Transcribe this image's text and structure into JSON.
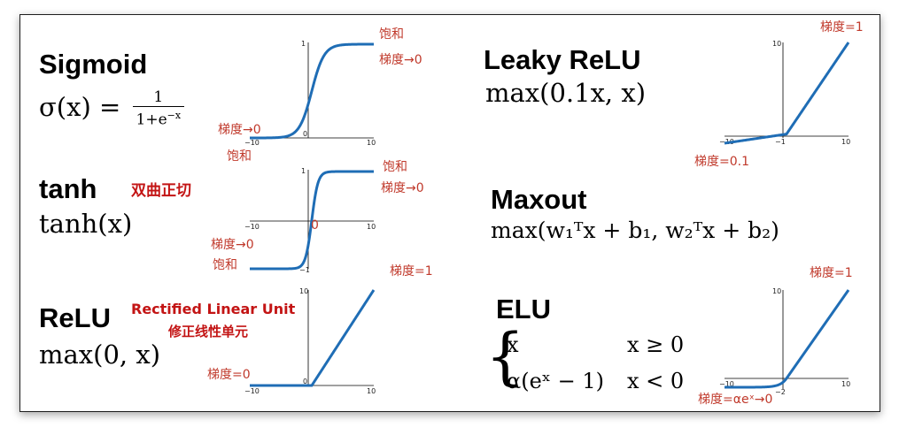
{
  "panels": {
    "sigmoid": {
      "title": "Sigmoid",
      "lhs": "σ(x) =",
      "num": "1",
      "den_base": "1+e",
      "den_exp": "−x",
      "note_top": "饱和",
      "note_top2": "梯度→0",
      "note_bottom": "梯度→0",
      "note_bottom2": "饱和",
      "ticks": {
        "ymax": "1",
        "ymid": "0",
        "xmin": "−10",
        "xmax": "10"
      }
    },
    "tanh": {
      "title": "tanh",
      "formula": "tanh(x)",
      "cn_label": "双曲正切",
      "note_top": "饱和",
      "note_top2": "梯度→0",
      "note_bottom": "梯度→0",
      "note_bottom2": "饱和",
      "note_center": "0",
      "ticks": {
        "ymax": "1",
        "ymin": "−1",
        "xmin": "−10",
        "xmax": "10"
      }
    },
    "relu": {
      "title": "ReLU",
      "formula": "max(0, x)",
      "en_label": "Rectified Linear Unit",
      "cn_label": "修正线性单元",
      "note_right": "梯度=1",
      "note_left": "梯度=0",
      "ticks": {
        "ymax": "10",
        "ymid": "0",
        "xmin": "−10",
        "xmax": "10"
      }
    },
    "leaky_relu": {
      "title": "Leaky ReLU",
      "formula": "max(0.1x, x)",
      "note_right": "梯度=1",
      "note_left": "梯度=0.1",
      "ticks": {
        "ymax": "10",
        "xmin": "−10",
        "xmid": "−1",
        "xmax": "10"
      }
    },
    "maxout": {
      "title": "Maxout",
      "formula": "max(w₁ᵀx + b₁, w₂ᵀx + b₂)"
    },
    "elu": {
      "title": "ELU",
      "case1_expr": "x",
      "case1_cond": "x ≥ 0",
      "case2_expr": "α(eˣ − 1)",
      "case2_cond": "x < 0",
      "note_right": "梯度=1",
      "note_left": "梯度=αeˣ→0",
      "ticks": {
        "ymax": "10",
        "xmin": "−10",
        "xmid": "−2",
        "xmax": "10"
      }
    }
  },
  "colors": {
    "curve": "#1f6db5",
    "note": "#c0392b"
  },
  "chart_data": [
    {
      "type": "line",
      "name": "sigmoid",
      "xlim": [
        -10,
        10
      ],
      "ylim": [
        0,
        1
      ],
      "fn": "sigmoid"
    },
    {
      "type": "line",
      "name": "tanh",
      "xlim": [
        -10,
        10
      ],
      "ylim": [
        -1,
        1
      ],
      "fn": "tanh"
    },
    {
      "type": "line",
      "name": "relu",
      "xlim": [
        -10,
        10
      ],
      "ylim": [
        0,
        10
      ],
      "fn": "relu"
    },
    {
      "type": "line",
      "name": "leaky_relu",
      "xlim": [
        -10,
        10
      ],
      "ylim": [
        -1,
        10
      ],
      "fn": "leaky"
    },
    {
      "type": "line",
      "name": "elu",
      "xlim": [
        -10,
        10
      ],
      "ylim": [
        -2,
        10
      ],
      "fn": "elu"
    }
  ]
}
